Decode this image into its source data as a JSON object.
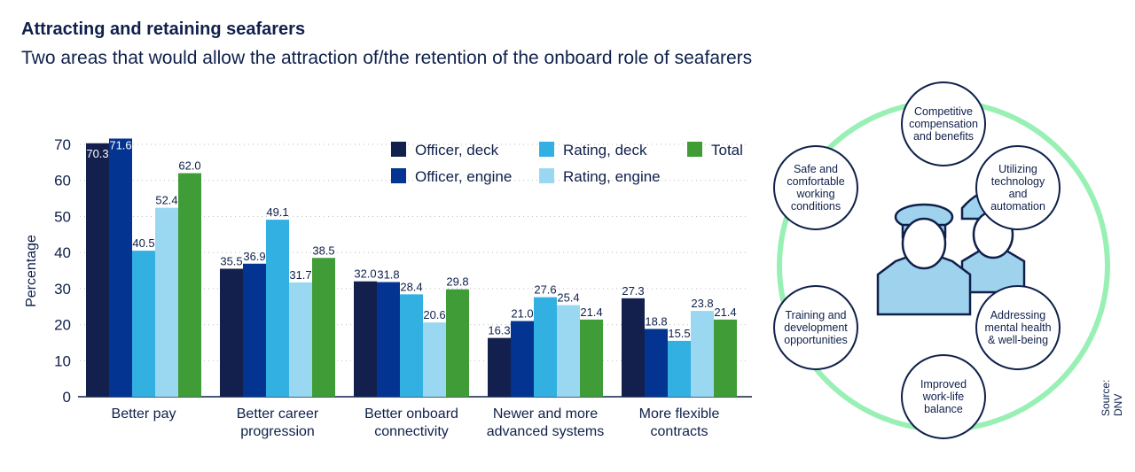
{
  "title": "Attracting and retaining seafarers",
  "subtitle": "Two areas that would allow the attraction of/the retention of the onboard role of seafarers",
  "source": "Source: DNV",
  "chart_data": {
    "type": "bar",
    "ylabel": "Percentage",
    "ylim": [
      0,
      70
    ],
    "yticks": [
      0,
      10,
      20,
      30,
      40,
      50,
      60,
      70
    ],
    "grid": true,
    "legend": "top-right",
    "categories": [
      [
        "Better pay"
      ],
      [
        "Better career",
        "progression"
      ],
      [
        "Better onboard",
        "connectivity"
      ],
      [
        "Newer and more",
        "advanced systems"
      ],
      [
        "More flexible",
        "contracts"
      ]
    ],
    "series": [
      {
        "name": "Officer, deck",
        "color": "#13204e",
        "values": [
          70.3,
          35.5,
          32.0,
          16.3,
          27.3
        ]
      },
      {
        "name": "Officer, engine",
        "color": "#033491",
        "values": [
          71.6,
          36.9,
          31.8,
          21.0,
          18.8
        ]
      },
      {
        "name": "Rating, deck",
        "color": "#32b0e2",
        "values": [
          40.5,
          49.1,
          28.4,
          27.6,
          15.5
        ]
      },
      {
        "name": "Rating, engine",
        "color": "#9ad8f1",
        "values": [
          52.4,
          31.7,
          20.6,
          25.4,
          23.8
        ]
      },
      {
        "name": "Total",
        "color": "#3f9c36",
        "values": [
          62.0,
          38.5,
          29.8,
          21.4,
          21.4
        ]
      }
    ]
  },
  "infographic": {
    "ring_color": "#98f0b4",
    "items": [
      "Competitive compensation and benefits",
      "Utilizing technology and automation",
      "Addressing mental health & well-being",
      "Improved work-life balance",
      "Training and development opportunities",
      "Safe and comfortable working conditions"
    ]
  }
}
